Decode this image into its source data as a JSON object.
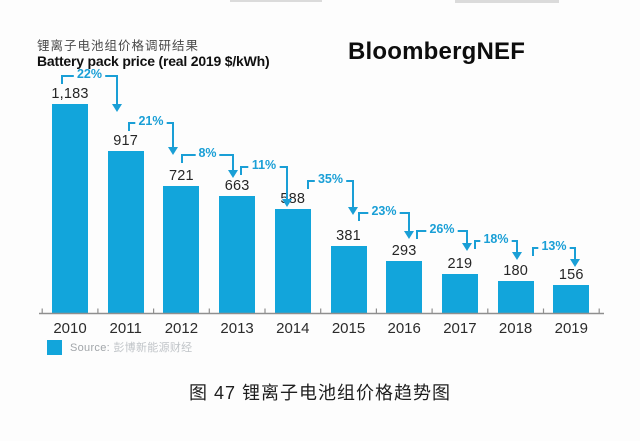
{
  "header": {
    "brand": "BloombergNEF"
  },
  "chart_data": {
    "type": "bar",
    "title": "锂离子电池组价格调研结果",
    "subtitle": "Battery pack price (real 2019 $/kWh)",
    "categories": [
      "2010",
      "2011",
      "2012",
      "2013",
      "2014",
      "2015",
      "2016",
      "2017",
      "2018",
      "2019"
    ],
    "values": [
      1183,
      917,
      721,
      663,
      588,
      381,
      293,
      219,
      180,
      156
    ],
    "value_labels": [
      "1,183",
      "917",
      "721",
      "663",
      "588",
      "381",
      "293",
      "219",
      "180",
      "156"
    ],
    "annotations": {
      "kind": "percent_decline_arrows",
      "labels": [
        "22%",
        "21%",
        "8%",
        "11%",
        "35%",
        "23%",
        "26%",
        "18%",
        "13%"
      ]
    },
    "ylabel": "",
    "xlabel": "",
    "ylim": [
      0,
      1250
    ],
    "grid": false,
    "legend_position": "bottom-left",
    "bar_color": "#12a5db",
    "annotation_color": "#1a9fd6",
    "axis_color": "#8f8f8f"
  },
  "footer": {
    "source_label": "Source:",
    "source_name": "彭博新能源财经"
  },
  "caption": "图 47  锂离子电池组价格趋势图"
}
